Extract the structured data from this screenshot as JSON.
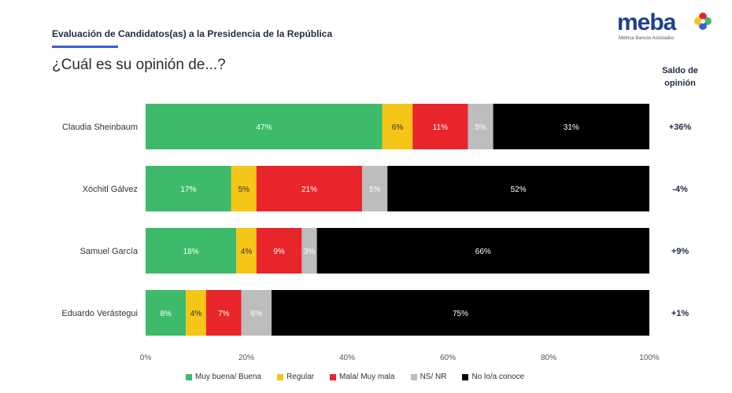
{
  "header": {
    "subtitle": "Evaluación de Candidatos(as) a la Presidencia de la República",
    "question": "¿Cuál es su opinión de...?",
    "accent_color": "#3b5bdb"
  },
  "logo": {
    "word": "meba",
    "tagline": "Metrica Bancos Asociados",
    "color": "#1f3f8f"
  },
  "saldo_header": "Saldo de opinión",
  "chart_data": {
    "type": "bar",
    "orientation": "horizontal",
    "stacked": true,
    "xlim": [
      0,
      100
    ],
    "xticks": [
      "0%",
      "20%",
      "40%",
      "60%",
      "80%",
      "100%"
    ],
    "categories": [
      "Claudia Sheinbaum",
      "Xóchitl Gálvez",
      "Samuel García",
      "Eduardo Verástegui"
    ],
    "series": [
      {
        "name": "Muy buena/ Buena",
        "color": "#3dbb6a",
        "values": [
          47,
          17,
          18,
          8
        ]
      },
      {
        "name": "Regular",
        "color": "#f5c518",
        "values": [
          6,
          5,
          4,
          4
        ]
      },
      {
        "name": "Mala/ Muy mala",
        "color": "#e8252b",
        "values": [
          11,
          21,
          9,
          7
        ]
      },
      {
        "name": "NS/ NR",
        "color": "#bdbdbd",
        "values": [
          5,
          5,
          3,
          6
        ]
      },
      {
        "name": "No lo/a conoce",
        "color": "#000000",
        "values": [
          31,
          52,
          66,
          75
        ]
      }
    ],
    "saldo": [
      "+36%",
      "-4%",
      "+9%",
      "+1%"
    ],
    "legend_position": "bottom",
    "grid": false
  }
}
